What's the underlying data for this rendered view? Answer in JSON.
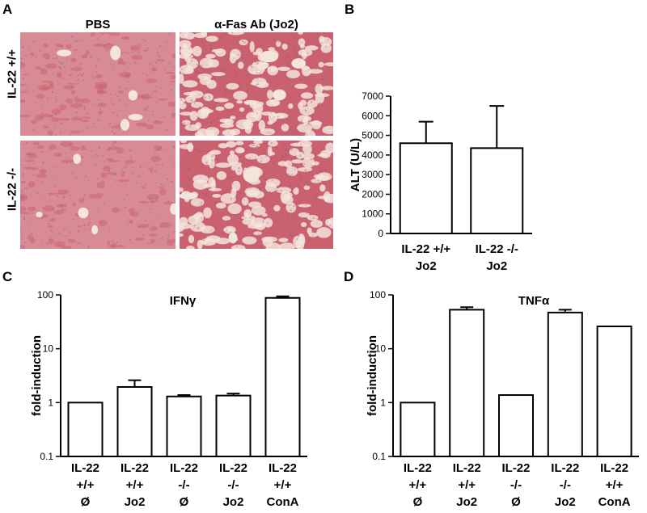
{
  "panelA": {
    "letter": "A",
    "columns": [
      "PBS",
      "α-Fas Ab (Jo2)"
    ],
    "rows": [
      "IL-22 +/+",
      "IL-22 -/-"
    ],
    "tissue_colors": {
      "base": "#d98b95",
      "dense": "#c9616e",
      "space": "#f3e4dc",
      "nucleus": "#7d5a8a"
    }
  },
  "panelB": {
    "letter": "B",
    "ylabel": "ALT (U/L)",
    "categories": [
      [
        "IL-22 +/+",
        "Jo2"
      ],
      [
        "IL-22 -/-",
        "Jo2"
      ]
    ],
    "ticks": [
      "0",
      "1000",
      "2000",
      "3000",
      "4000",
      "5000",
      "6000",
      "7000"
    ]
  },
  "panelC": {
    "letter": "C",
    "title": "IFNγ",
    "ylabel": "fold-induction",
    "ticks": [
      "0.1",
      "1",
      "10",
      "100"
    ],
    "categories": [
      [
        "IL-22",
        "+/+",
        "Ø"
      ],
      [
        "IL-22",
        "+/+",
        "Jo2"
      ],
      [
        "IL-22",
        "-/-",
        "Ø"
      ],
      [
        "IL-22",
        "-/-",
        "Jo2"
      ],
      [
        "IL-22",
        "+/+",
        "ConA"
      ]
    ]
  },
  "panelD": {
    "letter": "D",
    "title": "TNFα",
    "ylabel": "fold-induction",
    "ticks": [
      "0.1",
      "1",
      "10",
      "100"
    ],
    "categories": [
      [
        "IL-22",
        "+/+",
        "Ø"
      ],
      [
        "IL-22",
        "+/+",
        "Jo2"
      ],
      [
        "IL-22",
        "-/-",
        "Ø"
      ],
      [
        "IL-22",
        "-/-",
        "Jo2"
      ],
      [
        "IL-22",
        "+/+",
        "ConA"
      ]
    ]
  },
  "chart_data": [
    {
      "type": "bar",
      "panel": "B",
      "categories": [
        "IL-22 +/+ Jo2",
        "IL-22 -/- Jo2"
      ],
      "values": [
        4600,
        4350
      ],
      "errors": [
        1100,
        2150
      ],
      "ylabel": "ALT (U/L)",
      "ylim": [
        0,
        7000
      ],
      "grid": false
    },
    {
      "type": "bar",
      "panel": "C",
      "title": "IFNγ",
      "categories": [
        "IL-22 +/+ Ø",
        "IL-22 +/+ Jo2",
        "IL-22 -/- Ø",
        "IL-22 -/- Jo2",
        "IL-22 +/+ ConA"
      ],
      "values": [
        1.0,
        1.95,
        1.3,
        1.35,
        88
      ],
      "errors": [
        0,
        0.65,
        0.08,
        0.12,
        6
      ],
      "ylabel": "fold-induction",
      "yscale": "log",
      "ylim": [
        0.1,
        100
      ],
      "grid": false
    },
    {
      "type": "bar",
      "panel": "D",
      "title": "TNFα",
      "categories": [
        "IL-22 +/+ Ø",
        "IL-22 +/+ Jo2",
        "IL-22 -/- Ø",
        "IL-22 -/- Jo2",
        "IL-22 +/+ ConA"
      ],
      "values": [
        1.0,
        53,
        1.38,
        47,
        26
      ],
      "errors": [
        0,
        6,
        0,
        6,
        0
      ],
      "ylabel": "fold-induction",
      "yscale": "log",
      "ylim": [
        0.1,
        100
      ],
      "grid": false
    }
  ]
}
